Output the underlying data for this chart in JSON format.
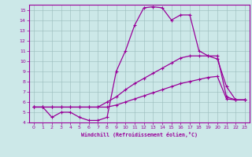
{
  "xlabel": "Windchill (Refroidissement éolien,°C)",
  "background_color": "#cce8e8",
  "grid_color": "#b0c8c8",
  "line_color": "#990099",
  "xlim": [
    -0.5,
    23.5
  ],
  "ylim": [
    4,
    15.5
  ],
  "xticks": [
    0,
    1,
    2,
    3,
    4,
    5,
    6,
    7,
    8,
    9,
    10,
    11,
    12,
    13,
    14,
    15,
    16,
    17,
    18,
    19,
    20,
    21,
    22,
    23
  ],
  "yticks": [
    4,
    5,
    6,
    7,
    8,
    9,
    10,
    11,
    12,
    13,
    14,
    15
  ],
  "line1_x": [
    0,
    1,
    2,
    3,
    4,
    5,
    6,
    7,
    8,
    9,
    10,
    11,
    12,
    13,
    14,
    15,
    16,
    17,
    18,
    19,
    20,
    21,
    22,
    23
  ],
  "line1_y": [
    5.5,
    5.5,
    4.5,
    5.0,
    5.0,
    4.5,
    4.2,
    4.2,
    4.5,
    9.0,
    11.0,
    13.5,
    15.2,
    15.3,
    15.2,
    14.0,
    14.5,
    14.5,
    11.0,
    10.5,
    10.2,
    7.5,
    6.2,
    6.2
  ],
  "line2_x": [
    0,
    1,
    2,
    3,
    4,
    5,
    6,
    7,
    8,
    9,
    10,
    11,
    12,
    13,
    14,
    15,
    16,
    17,
    18,
    19,
    20,
    21,
    22,
    23
  ],
  "line2_y": [
    5.5,
    5.5,
    5.5,
    5.5,
    5.5,
    5.5,
    5.5,
    5.5,
    6.0,
    6.5,
    7.2,
    7.8,
    8.3,
    8.8,
    9.3,
    9.8,
    10.3,
    10.5,
    10.5,
    10.5,
    10.5,
    6.5,
    6.2,
    6.2
  ],
  "line3_x": [
    0,
    1,
    2,
    3,
    4,
    5,
    6,
    7,
    8,
    9,
    10,
    11,
    12,
    13,
    14,
    15,
    16,
    17,
    18,
    19,
    20,
    21,
    22,
    23
  ],
  "line3_y": [
    5.5,
    5.5,
    5.5,
    5.5,
    5.5,
    5.5,
    5.5,
    5.5,
    5.5,
    5.7,
    6.0,
    6.3,
    6.6,
    6.9,
    7.2,
    7.5,
    7.8,
    8.0,
    8.2,
    8.4,
    8.5,
    6.3,
    6.2,
    6.2
  ]
}
